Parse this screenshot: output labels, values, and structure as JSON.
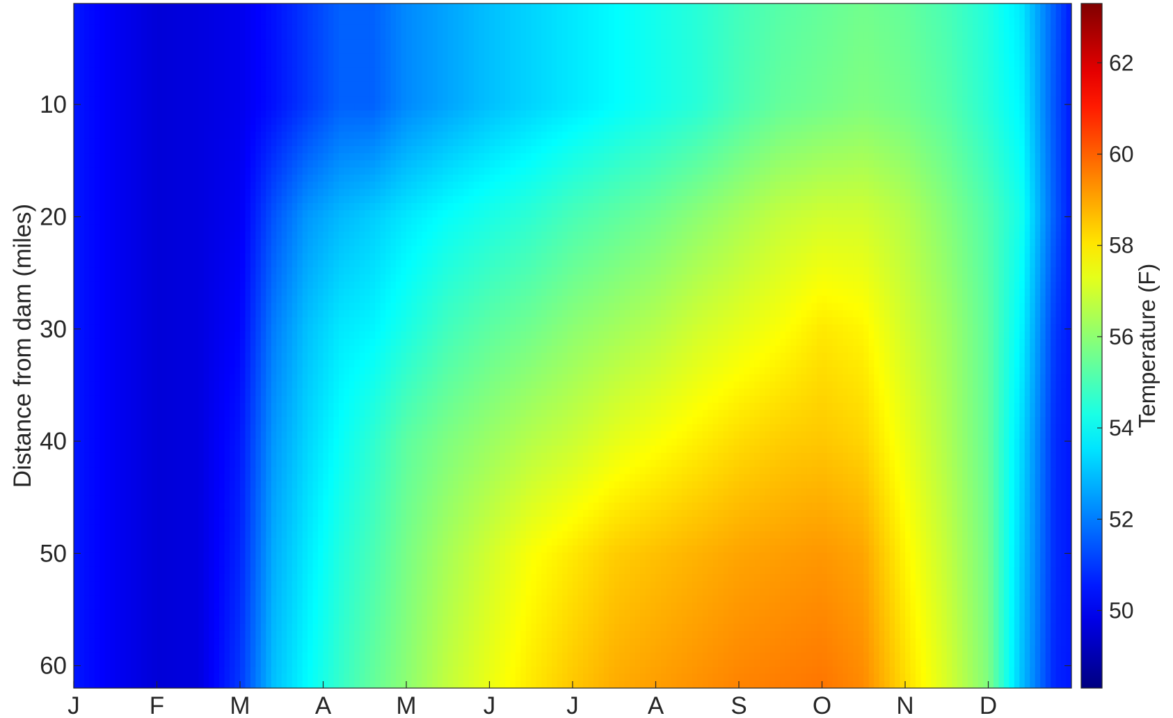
{
  "chart_data": {
    "type": "heatmap",
    "title": "",
    "xlabel": "",
    "ylabel": "Distance from dam (miles)",
    "x_tick_labels": [
      "J",
      "F",
      "M",
      "A",
      "M",
      "J",
      "J",
      "A",
      "S",
      "O",
      "N",
      "D"
    ],
    "y_ticks": [
      10,
      20,
      30,
      40,
      50,
      60
    ],
    "ylim": [
      1,
      62
    ],
    "y_reversed": true,
    "colorbar": {
      "label": "Temperature (F)",
      "ticks": [
        50,
        52,
        54,
        56,
        58,
        60,
        62
      ],
      "range": [
        48.3,
        63.3
      ],
      "colormap": "jet"
    },
    "x_months": [
      0,
      0.5,
      1,
      1.5,
      2,
      2.4,
      2.8,
      3.2,
      3.6,
      4,
      4.5,
      5,
      5.5,
      6,
      6.5,
      7,
      7.5,
      8,
      8.5,
      9,
      9.5,
      10,
      10.5,
      11,
      11.4,
      11.8,
      12
    ],
    "y_distance": [
      1,
      10,
      20,
      30,
      40,
      50,
      62
    ],
    "temperature_F": [
      [
        50.5,
        50.0,
        49.6,
        49.7,
        49.9,
        50.4,
        51.0,
        51.6,
        51.6,
        52.2,
        52.6,
        53.0,
        53.3,
        53.6,
        53.9,
        54.2,
        54.5,
        54.9,
        55.2,
        55.4,
        55.6,
        55.4,
        55.0,
        54.4,
        53.6,
        51.5,
        50.5
      ],
      [
        50.5,
        50.0,
        49.6,
        49.7,
        49.9,
        50.4,
        51.0,
        51.6,
        51.6,
        52.2,
        52.6,
        53.0,
        53.3,
        53.6,
        53.9,
        54.2,
        54.5,
        55.0,
        55.4,
        55.6,
        55.8,
        55.6,
        55.2,
        54.5,
        53.8,
        51.4,
        50.5
      ],
      [
        50.5,
        50.0,
        49.6,
        49.7,
        50.0,
        51.4,
        52.4,
        52.9,
        53.2,
        53.6,
        54.0,
        54.3,
        54.6,
        55.0,
        55.3,
        55.6,
        56.0,
        56.4,
        56.8,
        57.0,
        57.0,
        56.6,
        55.9,
        55.1,
        54.2,
        51.5,
        50.5
      ],
      [
        50.5,
        50.0,
        49.6,
        49.7,
        50.2,
        52.0,
        53.0,
        53.6,
        53.8,
        54.3,
        54.9,
        55.3,
        55.6,
        56.0,
        56.3,
        56.6,
        57.0,
        57.3,
        57.6,
        58.0,
        57.8,
        57.0,
        56.3,
        55.3,
        53.8,
        51.0,
        50.5
      ],
      [
        50.5,
        50.0,
        49.6,
        49.7,
        50.5,
        52.4,
        53.3,
        54.0,
        54.6,
        55.3,
        55.8,
        56.2,
        56.6,
        56.9,
        57.3,
        57.6,
        57.9,
        58.2,
        58.4,
        58.5,
        58.3,
        57.4,
        56.5,
        55.4,
        53.4,
        50.8,
        50.5
      ],
      [
        50.5,
        50.0,
        49.6,
        49.7,
        50.7,
        52.7,
        53.6,
        54.4,
        55.0,
        55.7,
        56.4,
        57.0,
        57.6,
        58.0,
        58.4,
        58.6,
        58.8,
        59.0,
        59.1,
        59.2,
        59.0,
        57.8,
        56.8,
        55.6,
        53.2,
        50.8,
        50.5
      ],
      [
        50.5,
        50.0,
        49.6,
        49.7,
        51.0,
        53.0,
        53.9,
        54.7,
        55.4,
        56.0,
        56.8,
        57.4,
        58.0,
        58.5,
        58.9,
        59.1,
        59.3,
        59.5,
        59.6,
        59.7,
        59.4,
        58.2,
        57.1,
        55.8,
        53.0,
        50.7,
        50.5
      ]
    ]
  }
}
